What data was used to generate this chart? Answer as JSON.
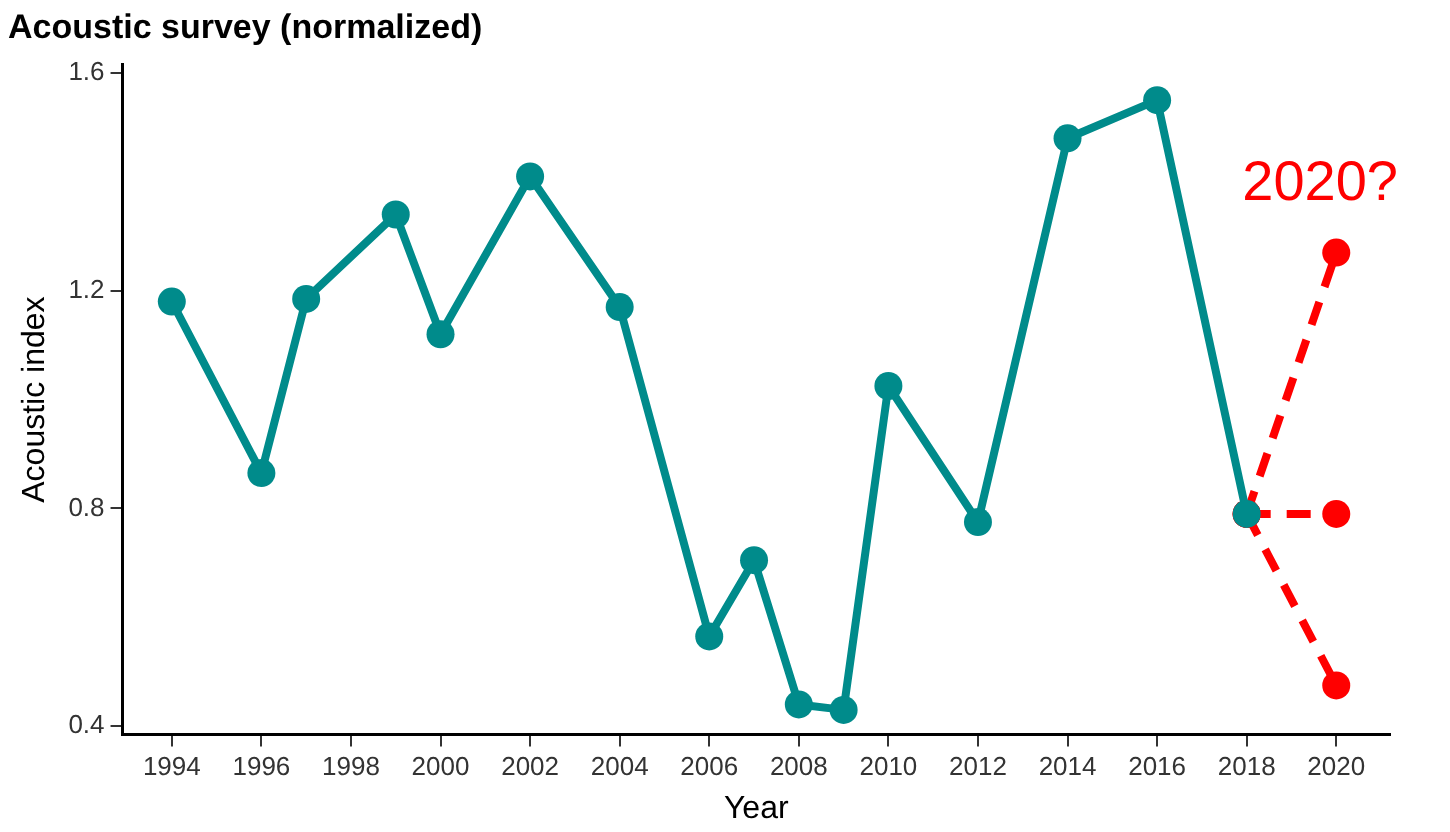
{
  "chart_data": {
    "type": "line",
    "title": "Acoustic survey (normalized)",
    "xlabel": "Year",
    "ylabel": "Acoustic index",
    "xlim": [
      1992.9,
      2021.2
    ],
    "xticks": [
      1994,
      1996,
      1998,
      2000,
      2002,
      2004,
      2006,
      2008,
      2010,
      2012,
      2014,
      2016,
      2018,
      2020
    ],
    "ylim": [
      0.385,
      1.615
    ],
    "yticks": [
      {
        "value": 0.4,
        "label": "0.4"
      },
      {
        "value": 0.8,
        "label": "0.8"
      },
      {
        "value": 1.2,
        "label": "1.2"
      },
      {
        "value": 1.6,
        "label": "1.6"
      }
    ],
    "grid": false,
    "legend": false,
    "marker": "circle",
    "series": [
      {
        "color": "#008b8b",
        "line_style": "solid",
        "x": [
          1994,
          1996,
          1997,
          1999,
          2000,
          2002,
          2004,
          2006,
          2007,
          2008,
          2009,
          2010,
          2012,
          2014,
          2016,
          2018
        ],
        "values": [
          1.18,
          0.865,
          1.185,
          1.34,
          1.12,
          1.41,
          1.17,
          0.565,
          0.705,
          0.44,
          0.43,
          1.025,
          0.775,
          1.48,
          1.55,
          0.79
        ]
      },
      {
        "color": "#ff0000",
        "line_style": "dashed",
        "x": [
          2018,
          2020
        ],
        "values": [
          0.79,
          1.27
        ]
      },
      {
        "color": "#ff0000",
        "line_style": "dashed",
        "x": [
          2018,
          2020
        ],
        "values": [
          0.79,
          0.79
        ]
      },
      {
        "color": "#ff0000",
        "line_style": "dashed",
        "x": [
          2018,
          2020
        ],
        "values": [
          0.79,
          0.475
        ]
      }
    ],
    "annotations": [
      "2020?"
    ]
  }
}
